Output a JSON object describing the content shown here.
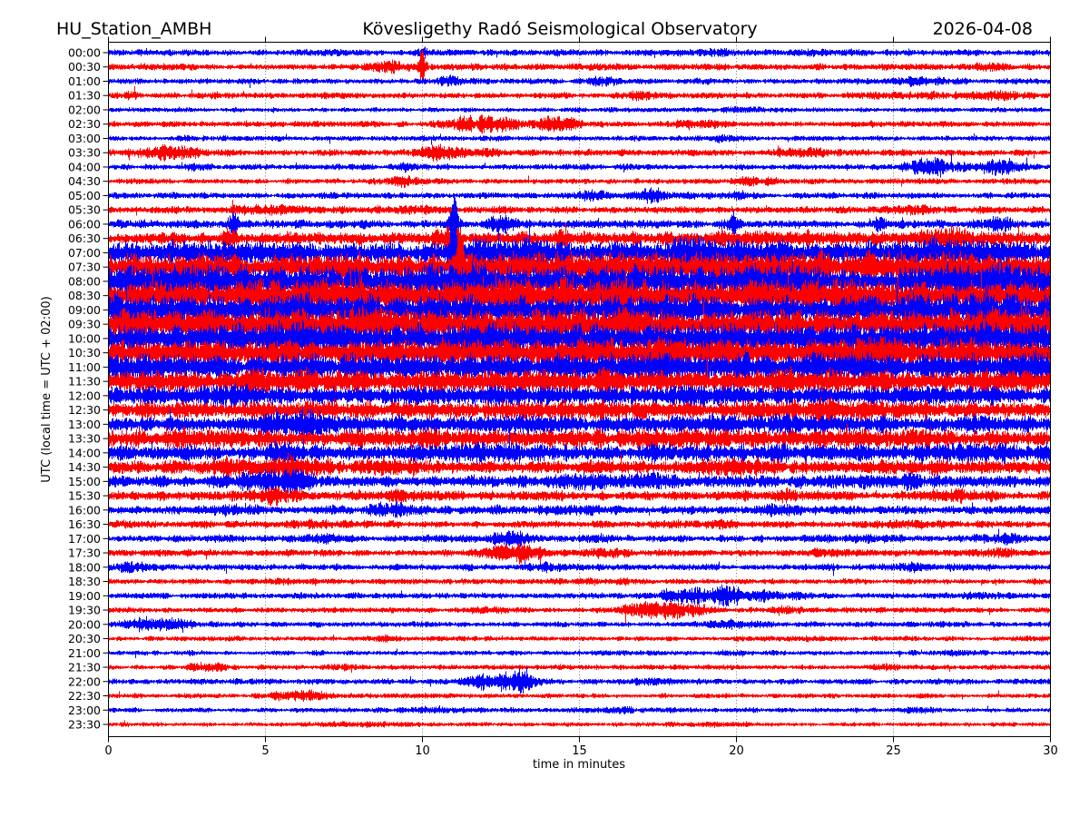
{
  "header": {
    "station": "HU_Station_AMBH",
    "observatory": "Kövesligethy Radó Seismological Observatory",
    "date": "2026-04-08"
  },
  "chart_data": {
    "type": "line",
    "subtype": "seismogram-helicorder-dayplot",
    "title": "Kövesligethy Radó Seismological Observatory",
    "station": "HU_Station_AMBH",
    "date": "2026-04-08",
    "xlabel": "time in minutes",
    "ylabel": "UTC (local time = UTC + 02:00)",
    "xlim": [
      0,
      30
    ],
    "x_ticks": [
      0,
      5,
      10,
      15,
      20,
      25,
      30
    ],
    "x_gridlines": [
      5,
      10,
      15,
      20,
      25
    ],
    "grid": "vertical dotted",
    "minutes_per_row": 30,
    "rows_count": 48,
    "legend_position": "none",
    "colors": {
      "hour_trace": "#0000ff",
      "half_hour_trace": "#ff0000",
      "axis": "#000000",
      "grid": "#555555"
    },
    "amplitude_note": "base = background noise half-amplitude (px); bursts = [center_min, sigma_min, extra_amp_px]",
    "rows": [
      {
        "label": "00:00",
        "color": "#0000ff",
        "base": 3.2,
        "bursts": [
          [
            19,
            1.5,
            0.8
          ],
          [
            23,
            1,
            0.8
          ],
          [
            10,
            0.15,
            2
          ]
        ]
      },
      {
        "label": "00:30",
        "color": "#ff0000",
        "base": 3.2,
        "bursts": [
          [
            9.0,
            0.4,
            5
          ],
          [
            10.0,
            0.08,
            12
          ],
          [
            27.8,
            0.5,
            2
          ]
        ]
      },
      {
        "label": "01:00",
        "color": "#0000ff",
        "base": 2.8,
        "bursts": [
          [
            10.8,
            0.3,
            4
          ],
          [
            25.8,
            0.8,
            2.5
          ],
          [
            15.8,
            0.3,
            2
          ]
        ]
      },
      {
        "label": "01:30",
        "color": "#ff0000",
        "base": 3.0,
        "bursts": [
          [
            16.9,
            0.3,
            2.5
          ],
          [
            26,
            1.5,
            1.5
          ],
          [
            28.5,
            0.5,
            2
          ],
          [
            0.5,
            0.3,
            1.5
          ]
        ]
      },
      {
        "label": "02:00",
        "color": "#0000ff",
        "base": 2.3,
        "bursts": [
          [
            20,
            0.8,
            0.8
          ]
        ]
      },
      {
        "label": "02:30",
        "color": "#ff0000",
        "base": 3.0,
        "bursts": [
          [
            11.4,
            0.4,
            5
          ],
          [
            12.4,
            0.5,
            6
          ],
          [
            14.2,
            0.5,
            5
          ],
          [
            18.8,
            0.6,
            2
          ]
        ]
      },
      {
        "label": "03:00",
        "color": "#0000ff",
        "base": 2.5,
        "bursts": [
          [
            19.7,
            0.4,
            2
          ],
          [
            2.5,
            0.5,
            1
          ]
        ]
      },
      {
        "label": "03:30",
        "color": "#ff0000",
        "base": 3.2,
        "bursts": [
          [
            2.0,
            0.7,
            5
          ],
          [
            10.6,
            0.5,
            6
          ],
          [
            11.8,
            0.4,
            3
          ],
          [
            22,
            0.5,
            2
          ]
        ]
      },
      {
        "label": "04:00",
        "color": "#0000ff",
        "base": 2.8,
        "bursts": [
          [
            2.7,
            0.3,
            3
          ],
          [
            9.4,
            0.3,
            3
          ],
          [
            26.3,
            0.7,
            7
          ],
          [
            28.5,
            0.5,
            6
          ]
        ]
      },
      {
        "label": "04:30",
        "color": "#ff0000",
        "base": 2.8,
        "bursts": [
          [
            9.4,
            0.4,
            4
          ],
          [
            20.5,
            0.5,
            2
          ]
        ]
      },
      {
        "label": "05:00",
        "color": "#0000ff",
        "base": 3.0,
        "bursts": [
          [
            15.4,
            0.4,
            4
          ],
          [
            17.4,
            0.4,
            5
          ],
          [
            19.9,
            0.4,
            2.5
          ]
        ]
      },
      {
        "label": "05:30",
        "color": "#ff0000",
        "base": 3.5,
        "bursts": [
          [
            5,
            0.5,
            2
          ],
          [
            9.5,
            0.4,
            2
          ],
          [
            25.6,
            0.5,
            3
          ]
        ]
      },
      {
        "label": "06:00",
        "color": "#0000ff",
        "base": 4.0,
        "bursts": [
          [
            4.0,
            0.12,
            9
          ],
          [
            11.0,
            0.1,
            16
          ],
          [
            12.5,
            0.3,
            6
          ],
          [
            19.9,
            0.15,
            9
          ],
          [
            24.6,
            0.15,
            7
          ],
          [
            28.4,
            0.3,
            6
          ]
        ]
      },
      {
        "label": "06:30",
        "color": "#ff0000",
        "base": 6.0,
        "bursts": [
          [
            4.0,
            0.2,
            7
          ],
          [
            10.9,
            0.3,
            8
          ],
          [
            14,
            1,
            3
          ],
          [
            21,
            1.5,
            3
          ],
          [
            26.8,
            0.8,
            5
          ]
        ]
      },
      {
        "label": "07:00",
        "color": "#0000ff",
        "base": 11,
        "bursts": [
          [
            11,
            0.08,
            28
          ],
          [
            4,
            1,
            3
          ],
          [
            13,
            1,
            4
          ],
          [
            18.5,
            1.5,
            4
          ],
          [
            26.5,
            1.5,
            4
          ]
        ]
      },
      {
        "label": "07:30",
        "color": "#ff0000",
        "base": 13,
        "bursts": [
          [
            11.2,
            0.08,
            22
          ],
          [
            16,
            2,
            3
          ],
          [
            24,
            2,
            3
          ]
        ]
      },
      {
        "label": "08:00",
        "color": "#0000ff",
        "base": 14,
        "bursts": [
          [
            3.5,
            1.5,
            3
          ],
          [
            11,
            1,
            4
          ],
          [
            19.5,
            2,
            3
          ],
          [
            27.5,
            1.5,
            4
          ]
        ]
      },
      {
        "label": "08:30",
        "color": "#ff0000",
        "base": 14,
        "bursts": [
          [
            6,
            2,
            3
          ],
          [
            13,
            2,
            3
          ],
          [
            21,
            2,
            3
          ]
        ]
      },
      {
        "label": "09:00",
        "color": "#0000ff",
        "base": 13,
        "bursts": [
          [
            2,
            1.5,
            3
          ],
          [
            10,
            2,
            3
          ],
          [
            17.5,
            2,
            3
          ],
          [
            27,
            2,
            4
          ]
        ]
      },
      {
        "label": "09:30",
        "color": "#ff0000",
        "base": 13,
        "bursts": [
          [
            1.5,
            1,
            4
          ],
          [
            8,
            2,
            3
          ],
          [
            15,
            2,
            3
          ],
          [
            22.5,
            2,
            3
          ],
          [
            29,
            1,
            4
          ]
        ]
      },
      {
        "label": "10:00",
        "color": "#0000ff",
        "base": 13,
        "bursts": [
          [
            5.5,
            2,
            3
          ],
          [
            12.5,
            2,
            4
          ],
          [
            20,
            2,
            3
          ],
          [
            28,
            1.5,
            4
          ]
        ]
      },
      {
        "label": "10:30",
        "color": "#ff0000",
        "base": 12,
        "bursts": [
          [
            3,
            1.5,
            3
          ],
          [
            11,
            2,
            3
          ],
          [
            18,
            2,
            3
          ],
          [
            25,
            2,
            4
          ]
        ]
      },
      {
        "label": "11:00",
        "color": "#0000ff",
        "base": 11.5,
        "bursts": [
          [
            1.5,
            1,
            3
          ],
          [
            9,
            2,
            3
          ],
          [
            16.5,
            2,
            3
          ],
          [
            23.5,
            2,
            3
          ],
          [
            29,
            1,
            3
          ]
        ]
      },
      {
        "label": "11:30",
        "color": "#ff0000",
        "base": 10,
        "bursts": [
          [
            6,
            2,
            2.5
          ],
          [
            14,
            2,
            2.5
          ],
          [
            21.5,
            2,
            2.5
          ],
          [
            28,
            1,
            3
          ]
        ]
      },
      {
        "label": "12:00",
        "color": "#0000ff",
        "base": 8,
        "bursts": [
          [
            3.5,
            1.5,
            2.5
          ],
          [
            11.5,
            2,
            2.5
          ],
          [
            19,
            2,
            2.5
          ],
          [
            26.5,
            1.5,
            2.5
          ]
        ]
      },
      {
        "label": "12:30",
        "color": "#ff0000",
        "base": 8,
        "bursts": [
          [
            6.5,
            1.5,
            2.5
          ],
          [
            15,
            2,
            2.5
          ],
          [
            23,
            2,
            2.5
          ]
        ]
      },
      {
        "label": "13:00",
        "color": "#0000ff",
        "base": 7.5,
        "bursts": [
          [
            5.5,
            0.8,
            5
          ],
          [
            6.5,
            0.5,
            5
          ],
          [
            13,
            2,
            2
          ],
          [
            21,
            2,
            2
          ],
          [
            28,
            1,
            2.5
          ]
        ]
      },
      {
        "label": "13:30",
        "color": "#ff0000",
        "base": 7.5,
        "bursts": [
          [
            2.5,
            1,
            2.5
          ],
          [
            10,
            2,
            2
          ],
          [
            17.5,
            2,
            2.5
          ],
          [
            25.5,
            1.5,
            2.5
          ]
        ]
      },
      {
        "label": "14:00",
        "color": "#0000ff",
        "base": 7.5,
        "bursts": [
          [
            5.5,
            0.5,
            5
          ],
          [
            12,
            1.5,
            2.5
          ],
          [
            20,
            2,
            2.5
          ],
          [
            27.5,
            1.5,
            3.5
          ]
        ]
      },
      {
        "label": "14:30",
        "color": "#ff0000",
        "base": 6.5,
        "bursts": [
          [
            3.8,
            0.5,
            5
          ],
          [
            5.8,
            0.7,
            6
          ],
          [
            9.3,
            0.5,
            4
          ],
          [
            20,
            1,
            3
          ],
          [
            26,
            1,
            2
          ]
        ]
      },
      {
        "label": "15:00",
        "color": "#0000ff",
        "base": 6,
        "bursts": [
          [
            4.8,
            0.4,
            6
          ],
          [
            5.9,
            0.4,
            6
          ],
          [
            15,
            1,
            2
          ],
          [
            17,
            0.8,
            3
          ],
          [
            25,
            1,
            2
          ]
        ]
      },
      {
        "label": "15:30",
        "color": "#ff0000",
        "base": 4.5,
        "bursts": [
          [
            5.3,
            0.4,
            6
          ],
          [
            9,
            0.6,
            2
          ],
          [
            22,
            0.8,
            2.5
          ],
          [
            27,
            0.8,
            2
          ]
        ]
      },
      {
        "label": "16:00",
        "color": "#0000ff",
        "base": 4.2,
        "bursts": [
          [
            9.0,
            0.5,
            5
          ],
          [
            4,
            0.6,
            2
          ],
          [
            14.5,
            0.8,
            2
          ],
          [
            21.5,
            0.8,
            2
          ]
        ]
      },
      {
        "label": "16:30",
        "color": "#ff0000",
        "base": 3.6,
        "bursts": [
          [
            7,
            0.8,
            1.5
          ],
          [
            19,
            0.8,
            1.5
          ],
          [
            26,
            0.8,
            1.5
          ]
        ]
      },
      {
        "label": "17:00",
        "color": "#0000ff",
        "base": 3.4,
        "bursts": [
          [
            12.7,
            0.6,
            6
          ],
          [
            7,
            0.5,
            2
          ],
          [
            24,
            0.8,
            1.5
          ],
          [
            28.5,
            0.5,
            2
          ]
        ]
      },
      {
        "label": "17:30",
        "color": "#ff0000",
        "base": 3.4,
        "bursts": [
          [
            13.0,
            0.6,
            7
          ],
          [
            15.6,
            0.4,
            3
          ],
          [
            23,
            0.8,
            1.5
          ],
          [
            28.3,
            0.4,
            3
          ]
        ]
      },
      {
        "label": "18:00",
        "color": "#0000ff",
        "base": 3.2,
        "bursts": [
          [
            0.6,
            0.5,
            4
          ],
          [
            14,
            0.8,
            1.5
          ],
          [
            25.5,
            0.8,
            1.5
          ]
        ]
      },
      {
        "label": "18:30",
        "color": "#ff0000",
        "base": 2.8,
        "bursts": [
          [
            5.5,
            0.5,
            1.5
          ],
          [
            16,
            0.8,
            1.2
          ]
        ]
      },
      {
        "label": "19:00",
        "color": "#0000ff",
        "base": 3.0,
        "bursts": [
          [
            18.3,
            0.6,
            6
          ],
          [
            19.8,
            0.6,
            6
          ],
          [
            21.5,
            0.5,
            3
          ],
          [
            27.5,
            0.5,
            2
          ]
        ]
      },
      {
        "label": "19:30",
        "color": "#ff0000",
        "base": 2.8,
        "bursts": [
          [
            17.4,
            0.6,
            7
          ],
          [
            18.7,
            0.5,
            4
          ],
          [
            21.5,
            0.4,
            2.5
          ],
          [
            12,
            0.5,
            2
          ]
        ]
      },
      {
        "label": "20:00",
        "color": "#0000ff",
        "base": 2.8,
        "bursts": [
          [
            1.2,
            0.6,
            6
          ],
          [
            2.2,
            0.4,
            4
          ],
          [
            19.8,
            0.5,
            2
          ]
        ]
      },
      {
        "label": "20:30",
        "color": "#ff0000",
        "base": 2.4,
        "bursts": [
          [
            9,
            0.5,
            1.2
          ],
          [
            22,
            0.5,
            1.2
          ]
        ]
      },
      {
        "label": "21:00",
        "color": "#0000ff",
        "base": 2.4,
        "bursts": [
          [
            19.8,
            0.4,
            1.5
          ],
          [
            27,
            0.5,
            1.2
          ]
        ]
      },
      {
        "label": "21:30",
        "color": "#ff0000",
        "base": 2.4,
        "bursts": [
          [
            3.2,
            0.4,
            2.5
          ],
          [
            7.5,
            0.4,
            2
          ],
          [
            24.9,
            0.4,
            2
          ]
        ]
      },
      {
        "label": "22:00",
        "color": "#0000ff",
        "base": 2.8,
        "bursts": [
          [
            12.6,
            0.4,
            7
          ],
          [
            13.2,
            0.4,
            7
          ],
          [
            11.8,
            0.3,
            4
          ],
          [
            17,
            0.8,
            1.5
          ]
        ]
      },
      {
        "label": "22:30",
        "color": "#ff0000",
        "base": 2.4,
        "bursts": [
          [
            6.3,
            0.5,
            4
          ],
          [
            5.6,
            0.3,
            2.5
          ]
        ]
      },
      {
        "label": "23:00",
        "color": "#0000ff",
        "base": 2.4,
        "bursts": [
          [
            10.5,
            0.8,
            1.5
          ],
          [
            16,
            0.8,
            1.2
          ],
          [
            26,
            0.5,
            1.5
          ]
        ]
      },
      {
        "label": "23:30",
        "color": "#ff0000",
        "base": 2.2,
        "bursts": [
          [
            8,
            0.8,
            1.2
          ],
          [
            19,
            0.8,
            1
          ]
        ]
      }
    ]
  }
}
